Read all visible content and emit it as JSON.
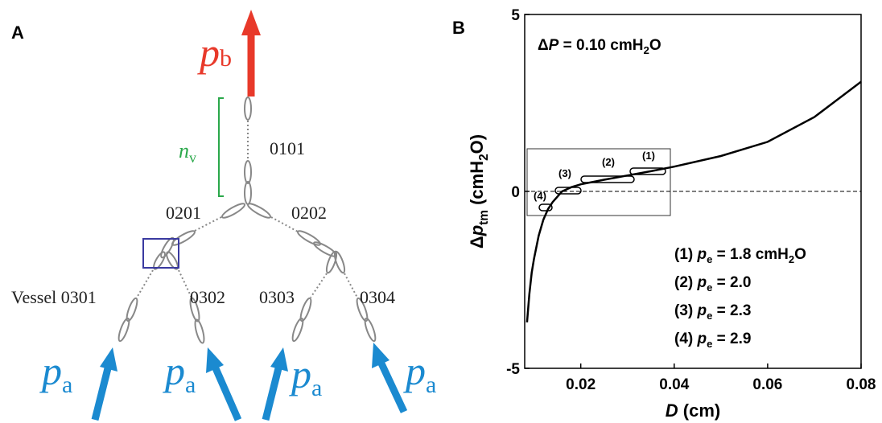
{
  "panel_a": {
    "letter": "A",
    "outlet": {
      "symbol": "p",
      "sub": "b"
    },
    "inlet": {
      "symbol": "p",
      "sub": "a"
    },
    "segment_count": {
      "symbol": "n",
      "sub": "v"
    },
    "vessels": [
      "0101",
      "0201",
      "0202",
      "Vessel 0301",
      "0302",
      "0303",
      "0304"
    ]
  },
  "chart_data": {
    "type": "line",
    "panel": "B",
    "title": {
      "delta": "Δ",
      "symbol": "P",
      "text": " = 0.10 cmH",
      "sub": "2",
      "tail": "O"
    },
    "x_label": {
      "symbol": "D",
      "unit": " (cm)"
    },
    "y_label": {
      "delta": "Δ",
      "symbol": "p",
      "sub": "tm",
      "text": " (cmH",
      "sub2": "2",
      "tail": "O)"
    },
    "x": [
      0.0085,
      0.009,
      0.0095,
      0.01,
      0.011,
      0.012,
      0.013,
      0.014,
      0.016,
      0.018,
      0.02,
      0.025,
      0.03,
      0.035,
      0.04,
      0.05,
      0.06,
      0.07,
      0.08
    ],
    "series": [
      {
        "color": "#000000",
        "values": [
          -3.7,
          -2.9,
          -2.3,
          -1.9,
          -1.25,
          -0.8,
          -0.5,
          -0.3,
          0.0,
          0.12,
          0.2,
          0.33,
          0.45,
          0.57,
          0.7,
          1.0,
          1.4,
          2.1,
          3.1
        ]
      }
    ],
    "xlim": [
      0.008,
      0.08
    ],
    "xticks": [
      0.02,
      0.04,
      0.06,
      0.08
    ],
    "ylim": [
      -5,
      5
    ],
    "yticks": [
      -5,
      0,
      5
    ],
    "annotations": [
      "(1)",
      "(2)",
      "(3)",
      "(4)"
    ],
    "legend_lines": [
      {
        "index": "(1) ",
        "symbol": "p",
        "sub": "e",
        "text": " = 1.8 cmH",
        "sub2": "2",
        "tail": "O"
      },
      {
        "index": "(2) ",
        "symbol": "p",
        "sub": "e",
        "text": " = 2.0"
      },
      {
        "index": "(3) ",
        "symbol": "p",
        "sub": "e",
        "text": " = 2.3"
      },
      {
        "index": "(4) ",
        "symbol": "p",
        "sub": "e",
        "text": " = 2.9"
      }
    ]
  }
}
